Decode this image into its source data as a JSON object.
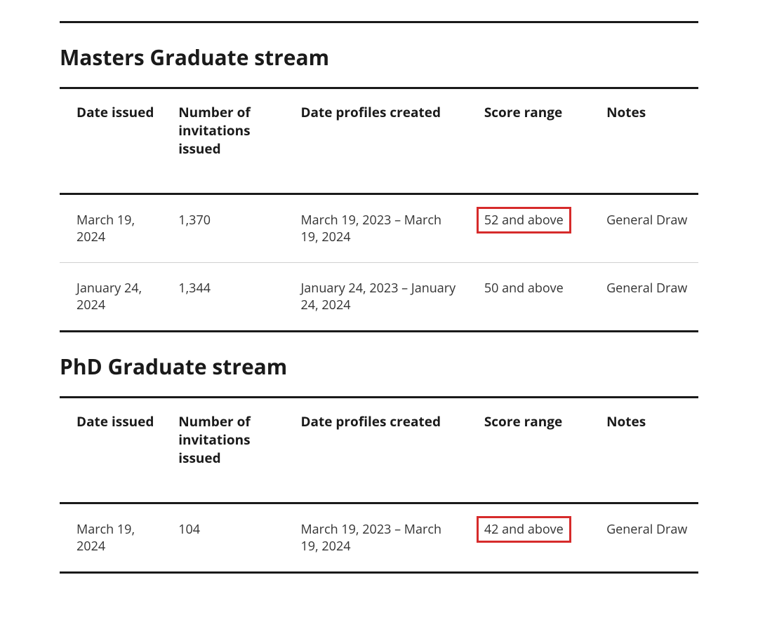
{
  "sections": [
    {
      "title": "Masters Graduate stream",
      "columns": [
        "Date issued",
        "Number of invitations issued",
        "Date profiles created",
        "Score range",
        "Notes"
      ],
      "rows": [
        {
          "date_issued": "March 19, 2024",
          "num_invitations": "1,370",
          "profiles_created": "March 19, 2023 – March 19, 2024",
          "score_range": "52 and above",
          "notes": "General Draw",
          "highlight_score": true
        },
        {
          "date_issued": "January 24, 2024",
          "num_invitations": "1,344",
          "profiles_created": "January 24, 2023 – January 24, 2024",
          "score_range": "50 and above",
          "notes": "General Draw",
          "highlight_score": false
        }
      ]
    },
    {
      "title": "PhD Graduate stream",
      "columns": [
        "Date issued",
        "Number of invitations issued",
        "Date profiles created",
        "Score range",
        "Notes"
      ],
      "rows": [
        {
          "date_issued": "March 19, 2024",
          "num_invitations": "104",
          "profiles_created": "March 19, 2023 – March 19, 2024",
          "score_range": "42 and above",
          "notes": "General Draw",
          "highlight_score": true
        }
      ]
    }
  ],
  "highlight_color": "#d62b2b",
  "text_color": "#1a1a1a",
  "body_text_color": "#333333",
  "row_divider_color": "#d0d0d0",
  "background_color": "#ffffff"
}
